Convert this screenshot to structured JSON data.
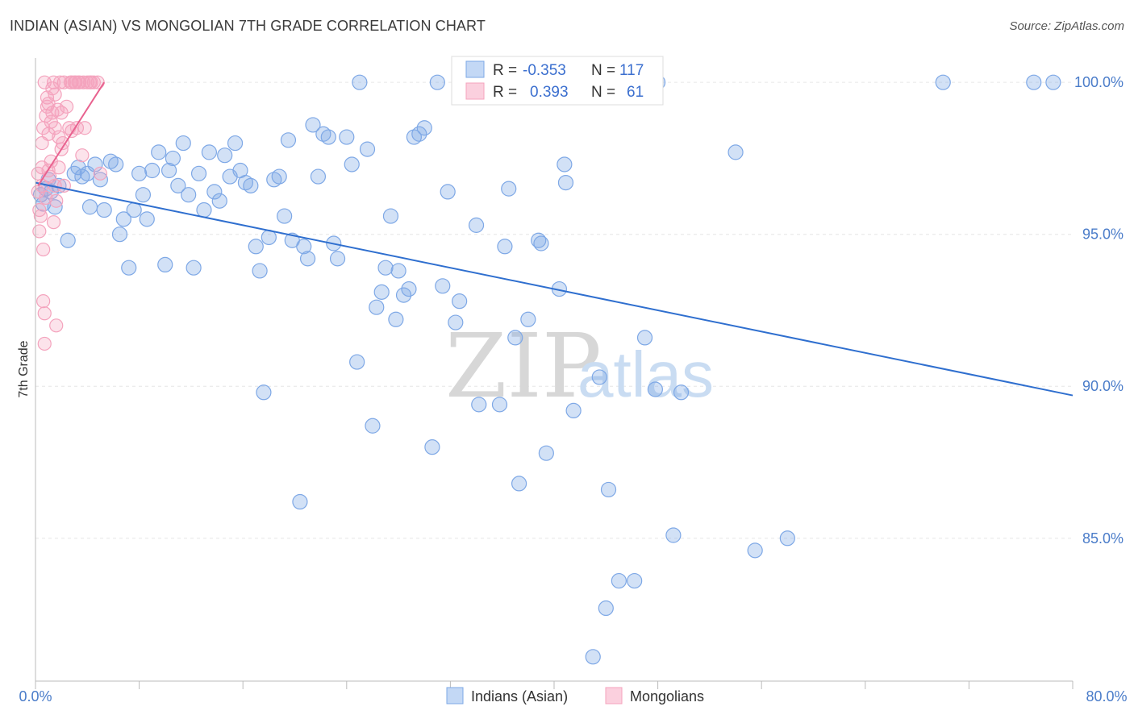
{
  "chart_data": {
    "type": "scatter",
    "title": "INDIAN (ASIAN) VS MONGOLIAN 7TH GRADE CORRELATION CHART",
    "source": "Source: ZipAtlas.com",
    "ylabel": "7th Grade",
    "xlabel": "",
    "xlim": [
      0,
      80
    ],
    "ylim": [
      80.3,
      100.8
    ],
    "x_tick_labels": [
      "0.0%",
      "80.0%"
    ],
    "y_ticks": [
      {
        "value": 100,
        "label": "100.0%"
      },
      {
        "value": 95,
        "label": "95.0%"
      },
      {
        "value": 90,
        "label": "90.0%"
      },
      {
        "value": 85,
        "label": "85.0%"
      }
    ],
    "watermark": {
      "zip": "ZIP",
      "atlas": "atlas"
    },
    "legend": {
      "r_label": "R =",
      "n_label": "N =",
      "items": [
        {
          "name": "Indians (Asian)",
          "r": "-0.353",
          "n": "117"
        },
        {
          "name": "Mongolians",
          "r": "0.393",
          "n": "61"
        }
      ]
    },
    "series": [
      {
        "name": "Indians (Asian)",
        "color": "#7ea8e6",
        "line_color": "#2f6fcf",
        "trend": {
          "x": [
            0,
            80
          ],
          "y": [
            96.7,
            89.7
          ]
        },
        "points": [
          [
            0.4,
            96.3
          ],
          [
            0.6,
            96.0
          ],
          [
            0.8,
            96.5
          ],
          [
            1.0,
            96.8
          ],
          [
            1.2,
            96.4
          ],
          [
            1.5,
            95.9
          ],
          [
            1.8,
            96.6
          ],
          [
            2.5,
            94.8
          ],
          [
            3.0,
            97.0
          ],
          [
            3.3,
            97.2
          ],
          [
            3.6,
            96.9
          ],
          [
            4.0,
            97.0
          ],
          [
            4.2,
            95.9
          ],
          [
            4.6,
            97.3
          ],
          [
            5.0,
            96.8
          ],
          [
            5.3,
            95.8
          ],
          [
            5.8,
            97.4
          ],
          [
            6.2,
            97.3
          ],
          [
            6.5,
            95.0
          ],
          [
            6.8,
            95.5
          ],
          [
            7.2,
            93.9
          ],
          [
            7.6,
            95.8
          ],
          [
            8.0,
            97.0
          ],
          [
            8.3,
            96.3
          ],
          [
            8.6,
            95.5
          ],
          [
            9.0,
            97.1
          ],
          [
            9.5,
            97.7
          ],
          [
            10.0,
            94.0
          ],
          [
            10.3,
            97.1
          ],
          [
            10.6,
            97.5
          ],
          [
            11.0,
            96.6
          ],
          [
            11.4,
            98.0
          ],
          [
            11.8,
            96.3
          ],
          [
            12.2,
            93.9
          ],
          [
            12.6,
            97.0
          ],
          [
            13.0,
            95.8
          ],
          [
            13.4,
            97.7
          ],
          [
            13.8,
            96.4
          ],
          [
            14.2,
            96.1
          ],
          [
            14.6,
            97.6
          ],
          [
            15.0,
            96.9
          ],
          [
            15.4,
            98.0
          ],
          [
            15.8,
            97.1
          ],
          [
            16.2,
            96.7
          ],
          [
            16.6,
            96.6
          ],
          [
            17.0,
            94.6
          ],
          [
            17.3,
            93.8
          ],
          [
            17.6,
            89.8
          ],
          [
            18.0,
            94.9
          ],
          [
            18.4,
            96.8
          ],
          [
            18.8,
            96.9
          ],
          [
            19.2,
            95.6
          ],
          [
            19.5,
            98.1
          ],
          [
            19.8,
            94.8
          ],
          [
            20.4,
            86.2
          ],
          [
            20.7,
            94.6
          ],
          [
            21.0,
            94.2
          ],
          [
            21.4,
            98.6
          ],
          [
            21.8,
            96.9
          ],
          [
            22.2,
            98.3
          ],
          [
            22.6,
            98.2
          ],
          [
            23.0,
            94.7
          ],
          [
            23.3,
            94.2
          ],
          [
            24.0,
            98.2
          ],
          [
            24.4,
            97.3
          ],
          [
            24.8,
            90.8
          ],
          [
            25.0,
            100.0
          ],
          [
            25.6,
            97.8
          ],
          [
            26.0,
            88.7
          ],
          [
            26.3,
            92.6
          ],
          [
            26.7,
            93.1
          ],
          [
            27.0,
            93.9
          ],
          [
            27.4,
            95.6
          ],
          [
            27.8,
            92.2
          ],
          [
            28.0,
            93.8
          ],
          [
            28.4,
            93.0
          ],
          [
            28.8,
            93.2
          ],
          [
            29.2,
            98.2
          ],
          [
            29.6,
            98.3
          ],
          [
            30.0,
            98.5
          ],
          [
            30.6,
            88.0
          ],
          [
            31.0,
            100.0
          ],
          [
            31.4,
            93.3
          ],
          [
            31.8,
            96.4
          ],
          [
            32.4,
            92.1
          ],
          [
            32.7,
            92.8
          ],
          [
            34.0,
            95.3
          ],
          [
            34.2,
            89.4
          ],
          [
            35.8,
            89.4
          ],
          [
            36.2,
            94.6
          ],
          [
            36.5,
            96.5
          ],
          [
            37.0,
            91.6
          ],
          [
            37.3,
            86.8
          ],
          [
            38.0,
            92.2
          ],
          [
            38.8,
            94.8
          ],
          [
            39.0,
            94.7
          ],
          [
            39.4,
            87.8
          ],
          [
            40.4,
            93.2
          ],
          [
            40.8,
            97.3
          ],
          [
            40.9,
            96.7
          ],
          [
            41.5,
            89.2
          ],
          [
            43.0,
            81.1
          ],
          [
            43.5,
            90.3
          ],
          [
            44.0,
            82.7
          ],
          [
            44.2,
            86.6
          ],
          [
            45.0,
            83.6
          ],
          [
            46.2,
            83.6
          ],
          [
            47.0,
            91.6
          ],
          [
            47.8,
            89.9
          ],
          [
            48.0,
            100.0
          ],
          [
            49.2,
            85.1
          ],
          [
            49.8,
            89.8
          ],
          [
            54.0,
            97.7
          ],
          [
            55.5,
            84.6
          ],
          [
            58.0,
            85.0
          ],
          [
            70.0,
            100.0
          ],
          [
            77.0,
            100.0
          ],
          [
            78.5,
            100.0
          ]
        ]
      },
      {
        "name": "Mongolians",
        "color": "#f4a3bd",
        "line_color": "#e8628f",
        "trend": {
          "x": [
            0.2,
            5.3
          ],
          "y": [
            96.6,
            100.0
          ]
        },
        "points": [
          [
            0.2,
            97.0
          ],
          [
            0.2,
            96.4
          ],
          [
            0.3,
            95.8
          ],
          [
            0.3,
            95.1
          ],
          [
            0.4,
            95.6
          ],
          [
            0.5,
            97.2
          ],
          [
            0.5,
            96.6
          ],
          [
            0.5,
            98.0
          ],
          [
            0.6,
            98.5
          ],
          [
            0.6,
            94.5
          ],
          [
            0.6,
            92.8
          ],
          [
            0.7,
            92.4
          ],
          [
            0.7,
            91.4
          ],
          [
            0.7,
            100.0
          ],
          [
            0.8,
            96.2
          ],
          [
            0.8,
            98.9
          ],
          [
            0.9,
            99.2
          ],
          [
            0.9,
            99.5
          ],
          [
            1.0,
            99.3
          ],
          [
            1.0,
            97.1
          ],
          [
            1.0,
            98.3
          ],
          [
            1.1,
            96.9
          ],
          [
            1.2,
            97.4
          ],
          [
            1.2,
            98.7
          ],
          [
            1.3,
            99.0
          ],
          [
            1.3,
            99.8
          ],
          [
            1.4,
            95.4
          ],
          [
            1.4,
            100.0
          ],
          [
            1.5,
            99.6
          ],
          [
            1.5,
            98.5
          ],
          [
            1.5,
            96.6
          ],
          [
            1.6,
            96.1
          ],
          [
            1.6,
            92.0
          ],
          [
            1.7,
            99.1
          ],
          [
            1.8,
            97.2
          ],
          [
            1.8,
            98.2
          ],
          [
            1.9,
            100.0
          ],
          [
            2.0,
            99.0
          ],
          [
            2.0,
            97.8
          ],
          [
            2.1,
            98.0
          ],
          [
            2.2,
            96.6
          ],
          [
            2.2,
            100.0
          ],
          [
            2.4,
            99.2
          ],
          [
            2.6,
            98.5
          ],
          [
            2.7,
            100.0
          ],
          [
            2.8,
            98.4
          ],
          [
            2.8,
            100.0
          ],
          [
            3.0,
            100.0
          ],
          [
            3.1,
            100.0
          ],
          [
            3.2,
            98.5
          ],
          [
            3.3,
            100.0
          ],
          [
            3.4,
            100.0
          ],
          [
            3.6,
            97.6
          ],
          [
            3.7,
            100.0
          ],
          [
            3.8,
            98.5
          ],
          [
            4.0,
            100.0
          ],
          [
            4.2,
            100.0
          ],
          [
            4.3,
            100.0
          ],
          [
            4.5,
            100.0
          ],
          [
            4.8,
            100.0
          ],
          [
            5.0,
            97.0
          ]
        ]
      }
    ]
  }
}
